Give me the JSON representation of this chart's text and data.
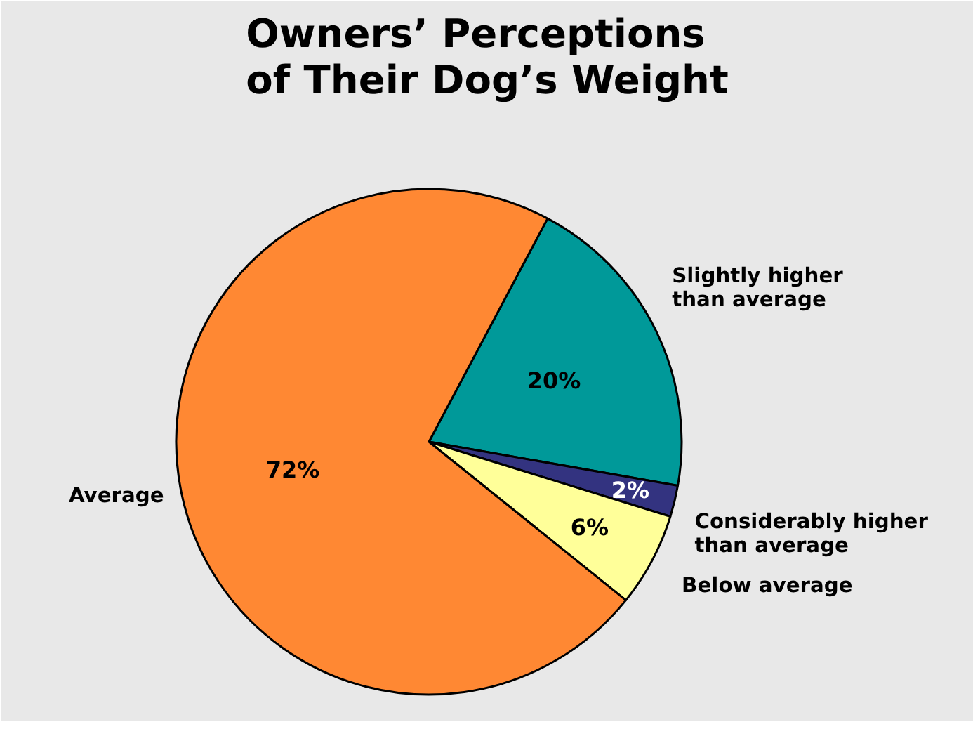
{
  "chart_data": {
    "type": "pie",
    "title": "Owners’ Perceptions\nof Their Dog’s Weight",
    "categories": [
      "Slightly higher\nthan average",
      "Considerably higher\nthan average",
      "Below average",
      "Average"
    ],
    "values": [
      20,
      2,
      6,
      72
    ],
    "colors": [
      "#009999",
      "#333380",
      "#ffff99",
      "#ff8833"
    ],
    "value_labels": [
      "20%",
      "2%",
      "6%",
      "72%"
    ]
  }
}
